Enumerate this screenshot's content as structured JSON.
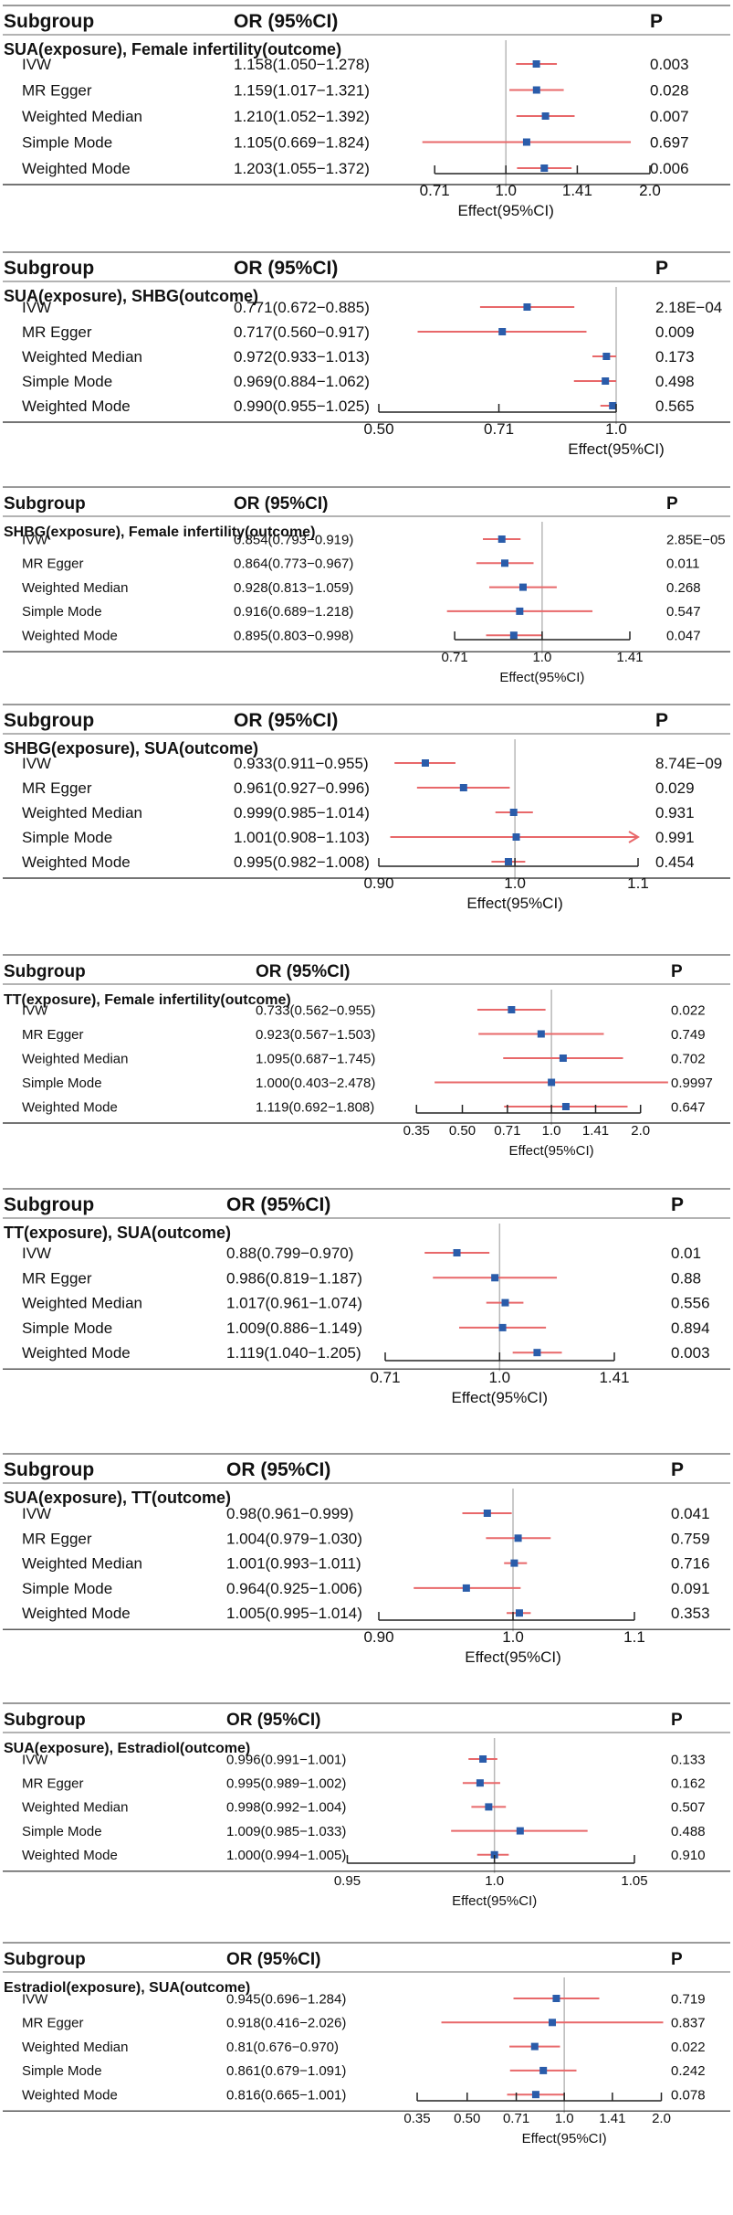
{
  "charts": [
    {
      "header": {
        "subgroup": "Subgroup",
        "or": "OR (95%CI)",
        "p": "P"
      },
      "section_label": "SUA(exposure), Female infertility(outcome)",
      "xlabel": "Effect(95%CI)",
      "ticks": [
        "0.71",
        "1.0",
        "1.41",
        "2.0"
      ],
      "rows": [
        {
          "method": "IVW",
          "or_text": "1.158(1.050−1.278)",
          "p": "0.003",
          "or": 1.158,
          "lo": 1.05,
          "hi": 1.278
        },
        {
          "method": "MR Egger",
          "or_text": "1.159(1.017−1.321)",
          "p": "0.028",
          "or": 1.159,
          "lo": 1.017,
          "hi": 1.321
        },
        {
          "method": "Weighted Median",
          "or_text": "1.210(1.052−1.392)",
          "p": "0.007",
          "or": 1.21,
          "lo": 1.052,
          "hi": 1.392
        },
        {
          "method": "Simple Mode",
          "or_text": "1.105(0.669−1.824)",
          "p": "0.697",
          "or": 1.105,
          "lo": 0.669,
          "hi": 1.824
        },
        {
          "method": "Weighted Mode",
          "or_text": "1.203(1.055−1.372)",
          "p": "0.006",
          "or": 1.203,
          "lo": 1.055,
          "hi": 1.372
        }
      ]
    },
    {
      "header": {
        "subgroup": "Subgroup",
        "or": "OR (95%CI)",
        "p": "P"
      },
      "section_label": "SUA(exposure), SHBG(outcome)",
      "xlabel": "Effect(95%CI)",
      "ticks": [
        "0.50",
        "0.71",
        "1.0"
      ],
      "rows": [
        {
          "method": "IVW",
          "or_text": "0.771(0.672−0.885)",
          "p": "2.18E−04",
          "or": 0.771,
          "lo": 0.672,
          "hi": 0.885
        },
        {
          "method": "MR Egger",
          "or_text": "0.717(0.560−0.917)",
          "p": "0.009",
          "or": 0.717,
          "lo": 0.56,
          "hi": 0.917
        },
        {
          "method": "Weighted Median",
          "or_text": "0.972(0.933−1.013)",
          "p": "0.173",
          "or": 0.972,
          "lo": 0.933,
          "hi": 1.013
        },
        {
          "method": "Simple Mode",
          "or_text": "0.969(0.884−1.062)",
          "p": "0.498",
          "or": 0.969,
          "lo": 0.884,
          "hi": 1.062
        },
        {
          "method": "Weighted Mode",
          "or_text": "0.990(0.955−1.025)",
          "p": "0.565",
          "or": 0.99,
          "lo": 0.955,
          "hi": 1.025
        }
      ]
    },
    {
      "header": {
        "subgroup": "Subgroup",
        "or": "OR (95%CI)",
        "p": "P"
      },
      "section_label": "SHBG(exposure), Female infertility(outcome)",
      "xlabel": "Effect(95%CI)",
      "ticks": [
        "0.71",
        "1.0",
        "1.41"
      ],
      "rows": [
        {
          "method": "IVW",
          "or_text": "0.854(0.793−0.919)",
          "p": "2.85E−05",
          "or": 0.854,
          "lo": 0.793,
          "hi": 0.919
        },
        {
          "method": "MR Egger",
          "or_text": "0.864(0.773−0.967)",
          "p": "0.011",
          "or": 0.864,
          "lo": 0.773,
          "hi": 0.967
        },
        {
          "method": "Weighted Median",
          "or_text": "0.928(0.813−1.059)",
          "p": "0.268",
          "or": 0.928,
          "lo": 0.813,
          "hi": 1.059
        },
        {
          "method": "Simple Mode",
          "or_text": "0.916(0.689−1.218)",
          "p": "0.547",
          "or": 0.916,
          "lo": 0.689,
          "hi": 1.218
        },
        {
          "method": "Weighted Mode",
          "or_text": "0.895(0.803−0.998)",
          "p": "0.047",
          "or": 0.895,
          "lo": 0.803,
          "hi": 0.998
        }
      ]
    },
    {
      "header": {
        "subgroup": "Subgroup",
        "or": "OR (95%CI)",
        "p": "P"
      },
      "section_label": "SHBG(exposure), SUA(outcome)",
      "xlabel": "Effect(95%CI)",
      "ticks": [
        "0.90",
        "1.0",
        "1.1"
      ],
      "rows": [
        {
          "method": "IVW",
          "or_text": "0.933(0.911−0.955)",
          "p": "8.74E−09",
          "or": 0.933,
          "lo": 0.911,
          "hi": 0.955
        },
        {
          "method": "MR Egger",
          "or_text": "0.961(0.927−0.996)",
          "p": "0.029",
          "or": 0.961,
          "lo": 0.927,
          "hi": 0.996
        },
        {
          "method": "Weighted Median",
          "or_text": "0.999(0.985−1.014)",
          "p": "0.931",
          "or": 0.999,
          "lo": 0.985,
          "hi": 1.014
        },
        {
          "method": "Simple Mode",
          "or_text": "1.001(0.908−1.103)",
          "p": "0.991",
          "or": 1.001,
          "lo": 0.908,
          "hi": 1.103,
          "arrow": true
        },
        {
          "method": "Weighted Mode",
          "or_text": "0.995(0.982−1.008)",
          "p": "0.454",
          "or": 0.995,
          "lo": 0.982,
          "hi": 1.008
        }
      ]
    },
    {
      "header": {
        "subgroup": "Subgroup",
        "or": "OR (95%CI)",
        "p": "P"
      },
      "section_label": "TT(exposure), Female infertility(outcome)",
      "xlabel": "Effect(95%CI)",
      "ticks": [
        "0.35",
        "0.50",
        "0.71",
        "1.0",
        "1.41",
        "2.0"
      ],
      "rows": [
        {
          "method": "IVW",
          "or_text": "0.733(0.562−0.955)",
          "p": "0.022",
          "or": 0.733,
          "lo": 0.562,
          "hi": 0.955
        },
        {
          "method": "MR Egger",
          "or_text": "0.923(0.567−1.503)",
          "p": "0.749",
          "or": 0.923,
          "lo": 0.567,
          "hi": 1.503
        },
        {
          "method": "Weighted Median",
          "or_text": "1.095(0.687−1.745)",
          "p": "0.702",
          "or": 1.095,
          "lo": 0.687,
          "hi": 1.745
        },
        {
          "method": "Simple Mode",
          "or_text": "1.000(0.403−2.478)",
          "p": "0.9997",
          "or": 1.0,
          "lo": 0.403,
          "hi": 2.478
        },
        {
          "method": "Weighted Mode",
          "or_text": "1.119(0.692−1.808)",
          "p": "0.647",
          "or": 1.119,
          "lo": 0.692,
          "hi": 1.808
        }
      ]
    },
    {
      "header": {
        "subgroup": "Subgroup",
        "or": "OR (95%CI)",
        "p": "P"
      },
      "section_label": "TT(exposure), SUA(outcome)",
      "xlabel": "Effect(95%CI)",
      "ticks": [
        "0.71",
        "1.0",
        "1.41"
      ],
      "rows": [
        {
          "method": "IVW",
          "or_text": "0.88(0.799−0.970)",
          "p": "0.01",
          "or": 0.88,
          "lo": 0.799,
          "hi": 0.97
        },
        {
          "method": "MR Egger",
          "or_text": "0.986(0.819−1.187)",
          "p": "0.88",
          "or": 0.986,
          "lo": 0.819,
          "hi": 1.187
        },
        {
          "method": "Weighted Median",
          "or_text": "1.017(0.961−1.074)",
          "p": "0.556",
          "or": 1.017,
          "lo": 0.961,
          "hi": 1.074
        },
        {
          "method": "Simple Mode",
          "or_text": "1.009(0.886−1.149)",
          "p": "0.894",
          "or": 1.009,
          "lo": 0.886,
          "hi": 1.149
        },
        {
          "method": "Weighted Mode",
          "or_text": "1.119(1.040−1.205)",
          "p": "0.003",
          "or": 1.119,
          "lo": 1.04,
          "hi": 1.205
        }
      ]
    },
    {
      "header": {
        "subgroup": "Subgroup",
        "or": "OR (95%CI)",
        "p": "P"
      },
      "section_label": "SUA(exposure), TT(outcome)",
      "xlabel": "Effect(95%CI)",
      "ticks": [
        "0.90",
        "1.0",
        "1.1"
      ],
      "rows": [
        {
          "method": "IVW",
          "or_text": "0.98(0.961−0.999)",
          "p": "0.041",
          "or": 0.98,
          "lo": 0.961,
          "hi": 0.999
        },
        {
          "method": "MR Egger",
          "or_text": "1.004(0.979−1.030)",
          "p": "0.759",
          "or": 1.004,
          "lo": 0.979,
          "hi": 1.03
        },
        {
          "method": "Weighted Median",
          "or_text": "1.001(0.993−1.011)",
          "p": "0.716",
          "or": 1.001,
          "lo": 0.993,
          "hi": 1.011
        },
        {
          "method": "Simple Mode",
          "or_text": "0.964(0.925−1.006)",
          "p": "0.091",
          "or": 0.964,
          "lo": 0.925,
          "hi": 1.006
        },
        {
          "method": "Weighted Mode",
          "or_text": "1.005(0.995−1.014)",
          "p": "0.353",
          "or": 1.005,
          "lo": 0.995,
          "hi": 1.014
        }
      ]
    },
    {
      "header": {
        "subgroup": "Subgroup",
        "or": "OR (95%CI)",
        "p": "P"
      },
      "section_label": "SUA(exposure), Estradiol(outcome)",
      "xlabel": "Effect(95%CI)",
      "ticks": [
        "0.95",
        "1.0",
        "1.05"
      ],
      "rows": [
        {
          "method": "IVW",
          "or_text": "0.996(0.991−1.001)",
          "p": "0.133",
          "or": 0.996,
          "lo": 0.991,
          "hi": 1.001
        },
        {
          "method": "MR Egger",
          "or_text": "0.995(0.989−1.002)",
          "p": "0.162",
          "or": 0.995,
          "lo": 0.989,
          "hi": 1.002
        },
        {
          "method": "Weighted Median",
          "or_text": "0.998(0.992−1.004)",
          "p": "0.507",
          "or": 0.998,
          "lo": 0.992,
          "hi": 1.004
        },
        {
          "method": "Simple Mode",
          "or_text": "1.009(0.985−1.033)",
          "p": "0.488",
          "or": 1.009,
          "lo": 0.985,
          "hi": 1.033
        },
        {
          "method": "Weighted Mode",
          "or_text": "1.000(0.994−1.005)",
          "p": "0.910",
          "or": 1.0,
          "lo": 0.994,
          "hi": 1.005
        }
      ]
    },
    {
      "header": {
        "subgroup": "Subgroup",
        "or": "OR (95%CI)",
        "p": "P"
      },
      "section_label": "Estradiol(exposure), SUA(outcome)",
      "xlabel": "Effect(95%CI)",
      "ticks": [
        "0.35",
        "0.50",
        "0.71",
        "1.0",
        "1.41",
        "2.0"
      ],
      "rows": [
        {
          "method": "IVW",
          "or_text": "0.945(0.696−1.284)",
          "p": "0.719",
          "or": 0.945,
          "lo": 0.696,
          "hi": 1.284
        },
        {
          "method": "MR Egger",
          "or_text": "0.918(0.416−2.026)",
          "p": "0.837",
          "or": 0.918,
          "lo": 0.416,
          "hi": 2.026
        },
        {
          "method": "Weighted Median",
          "or_text": "0.81(0.676−0.970)",
          "p": "0.022",
          "or": 0.81,
          "lo": 0.676,
          "hi": 0.97
        },
        {
          "method": "Simple Mode",
          "or_text": "0.861(0.679−1.091)",
          "p": "0.242",
          "or": 0.861,
          "lo": 0.679,
          "hi": 1.091
        },
        {
          "method": "Weighted Mode",
          "or_text": "0.816(0.665−1.001)",
          "p": "0.078",
          "or": 0.816,
          "lo": 0.665,
          "hi": 1.001
        }
      ]
    }
  ],
  "colors": {
    "ci": "#e8686a",
    "point": "#2a5caa",
    "rule": "#9a9a9a",
    "axis": "#222222",
    "ref": "#b8b8b8"
  },
  "chart_data": [
    {
      "type": "forest",
      "title": "SUA(exposure), Female infertility(outcome)",
      "xlabel": "Effect(95%CI)",
      "xscale": "log",
      "ticks": [
        0.71,
        1.0,
        1.41,
        2.0
      ],
      "categories": [
        "IVW",
        "MR Egger",
        "Weighted Median",
        "Simple Mode",
        "Weighted Mode"
      ],
      "or": [
        1.158,
        1.159,
        1.21,
        1.105,
        1.203
      ],
      "ci_low": [
        1.05,
        1.017,
        1.052,
        0.669,
        1.055
      ],
      "ci_high": [
        1.278,
        1.321,
        1.392,
        1.824,
        1.372
      ],
      "p": [
        "0.003",
        "0.028",
        "0.007",
        "0.697",
        "0.006"
      ]
    },
    {
      "type": "forest",
      "title": "SUA(exposure), SHBG(outcome)",
      "xlabel": "Effect(95%CI)",
      "xscale": "log",
      "ticks": [
        0.5,
        0.71,
        1.0
      ],
      "categories": [
        "IVW",
        "MR Egger",
        "Weighted Median",
        "Simple Mode",
        "Weighted Mode"
      ],
      "or": [
        0.771,
        0.717,
        0.972,
        0.969,
        0.99
      ],
      "ci_low": [
        0.672,
        0.56,
        0.933,
        0.884,
        0.955
      ],
      "ci_high": [
        0.885,
        0.917,
        1.013,
        1.062,
        1.025
      ],
      "p": [
        "2.18E-04",
        "0.009",
        "0.173",
        "0.498",
        "0.565"
      ]
    },
    {
      "type": "forest",
      "title": "SHBG(exposure), Female infertility(outcome)",
      "xlabel": "Effect(95%CI)",
      "xscale": "log",
      "ticks": [
        0.71,
        1.0,
        1.41
      ],
      "categories": [
        "IVW",
        "MR Egger",
        "Weighted Median",
        "Simple Mode",
        "Weighted Mode"
      ],
      "or": [
        0.854,
        0.864,
        0.928,
        0.916,
        0.895
      ],
      "ci_low": [
        0.793,
        0.773,
        0.813,
        0.689,
        0.803
      ],
      "ci_high": [
        0.919,
        0.967,
        1.059,
        1.218,
        0.998
      ],
      "p": [
        "2.85E-05",
        "0.011",
        "0.268",
        "0.547",
        "0.047"
      ]
    },
    {
      "type": "forest",
      "title": "SHBG(exposure), SUA(outcome)",
      "xlabel": "Effect(95%CI)",
      "xscale": "log",
      "ticks": [
        0.9,
        1.0,
        1.1
      ],
      "categories": [
        "IVW",
        "MR Egger",
        "Weighted Median",
        "Simple Mode",
        "Weighted Mode"
      ],
      "or": [
        0.933,
        0.961,
        0.999,
        1.001,
        0.995
      ],
      "ci_low": [
        0.911,
        0.927,
        0.985,
        0.908,
        0.982
      ],
      "ci_high": [
        0.955,
        0.996,
        1.014,
        1.103,
        1.008
      ],
      "p": [
        "8.74E-09",
        "0.029",
        "0.931",
        "0.991",
        "0.454"
      ]
    },
    {
      "type": "forest",
      "title": "TT(exposure), Female infertility(outcome)",
      "xlabel": "Effect(95%CI)",
      "xscale": "log",
      "ticks": [
        0.35,
        0.5,
        0.71,
        1.0,
        1.41,
        2.0
      ],
      "categories": [
        "IVW",
        "MR Egger",
        "Weighted Median",
        "Simple Mode",
        "Weighted Mode"
      ],
      "or": [
        0.733,
        0.923,
        1.095,
        1.0,
        1.119
      ],
      "ci_low": [
        0.562,
        0.567,
        0.687,
        0.403,
        0.692
      ],
      "ci_high": [
        0.955,
        1.503,
        1.745,
        2.478,
        1.808
      ],
      "p": [
        "0.022",
        "0.749",
        "0.702",
        "0.9997",
        "0.647"
      ]
    },
    {
      "type": "forest",
      "title": "TT(exposure), SUA(outcome)",
      "xlabel": "Effect(95%CI)",
      "xscale": "log",
      "ticks": [
        0.71,
        1.0,
        1.41
      ],
      "categories": [
        "IVW",
        "MR Egger",
        "Weighted Median",
        "Simple Mode",
        "Weighted Mode"
      ],
      "or": [
        0.88,
        0.986,
        1.017,
        1.009,
        1.119
      ],
      "ci_low": [
        0.799,
        0.819,
        0.961,
        0.886,
        1.04
      ],
      "ci_high": [
        0.97,
        1.187,
        1.074,
        1.149,
        1.205
      ],
      "p": [
        "0.01",
        "0.88",
        "0.556",
        "0.894",
        "0.003"
      ]
    },
    {
      "type": "forest",
      "title": "SUA(exposure), TT(outcome)",
      "xlabel": "Effect(95%CI)",
      "xscale": "log",
      "ticks": [
        0.9,
        1.0,
        1.1
      ],
      "categories": [
        "IVW",
        "MR Egger",
        "Weighted Median",
        "Simple Mode",
        "Weighted Mode"
      ],
      "or": [
        0.98,
        1.004,
        1.001,
        0.964,
        1.005
      ],
      "ci_low": [
        0.961,
        0.979,
        0.993,
        0.925,
        0.995
      ],
      "ci_high": [
        0.999,
        1.03,
        1.011,
        1.006,
        1.014
      ],
      "p": [
        "0.041",
        "0.759",
        "0.716",
        "0.091",
        "0.353"
      ]
    },
    {
      "type": "forest",
      "title": "SUA(exposure), Estradiol(outcome)",
      "xlabel": "Effect(95%CI)",
      "xscale": "log",
      "ticks": [
        0.95,
        1.0,
        1.05
      ],
      "categories": [
        "IVW",
        "MR Egger",
        "Weighted Median",
        "Simple Mode",
        "Weighted Mode"
      ],
      "or": [
        0.996,
        0.995,
        0.998,
        1.009,
        1.0
      ],
      "ci_low": [
        0.991,
        0.989,
        0.992,
        0.985,
        0.994
      ],
      "ci_high": [
        1.001,
        1.002,
        1.004,
        1.033,
        1.005
      ],
      "p": [
        "0.133",
        "0.162",
        "0.507",
        "0.488",
        "0.910"
      ]
    },
    {
      "type": "forest",
      "title": "Estradiol(exposure), SUA(outcome)",
      "xlabel": "Effect(95%CI)",
      "xscale": "log",
      "ticks": [
        0.35,
        0.5,
        0.71,
        1.0,
        1.41,
        2.0
      ],
      "categories": [
        "IVW",
        "MR Egger",
        "Weighted Median",
        "Simple Mode",
        "Weighted Mode"
      ],
      "or": [
        0.945,
        0.918,
        0.81,
        0.861,
        0.816
      ],
      "ci_low": [
        0.696,
        0.416,
        0.676,
        0.679,
        0.665
      ],
      "ci_high": [
        1.284,
        2.026,
        0.97,
        1.091,
        1.001
      ],
      "p": [
        "0.719",
        "0.837",
        "0.022",
        "0.242",
        "0.078"
      ]
    }
  ]
}
